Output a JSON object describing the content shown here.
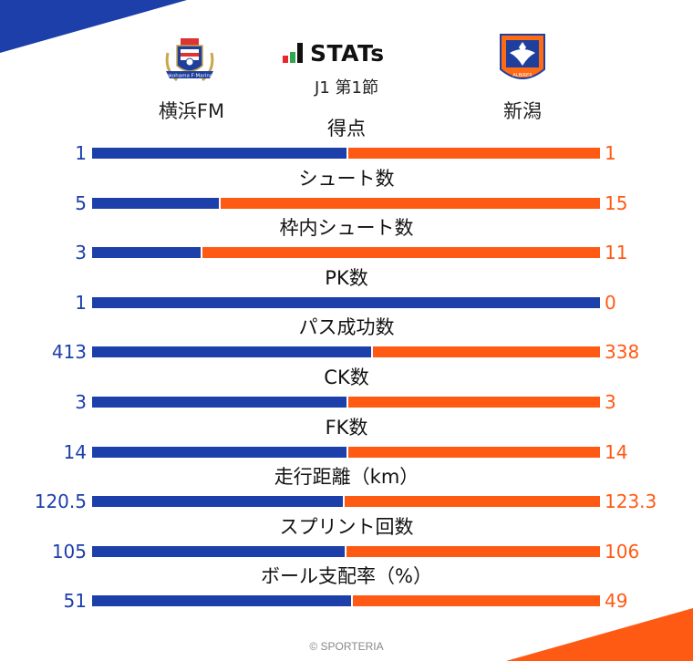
{
  "header": {
    "title": "STATs",
    "round": "J1 第1節",
    "home_team": "横浜FM",
    "away_team": "新潟",
    "home_crest_text": "Yokohama F·Marinos",
    "away_crest_text": "ALBIREX"
  },
  "colors": {
    "home": "#1c3faa",
    "away": "#ff5a14",
    "logo_bars": [
      "#e8262c",
      "#2fa84f",
      "#111111"
    ]
  },
  "stats": [
    {
      "label": "得点",
      "home": "1",
      "away": "1",
      "home_value": 1,
      "away_value": 1
    },
    {
      "label": "シュート数",
      "home": "5",
      "away": "15",
      "home_value": 5,
      "away_value": 15
    },
    {
      "label": "枠内シュート数",
      "home": "3",
      "away": "11",
      "home_value": 3,
      "away_value": 11
    },
    {
      "label": "PK数",
      "home": "1",
      "away": "0",
      "home_value": 1,
      "away_value": 0
    },
    {
      "label": "パス成功数",
      "home": "413",
      "away": "338",
      "home_value": 413,
      "away_value": 338
    },
    {
      "label": "CK数",
      "home": "3",
      "away": "3",
      "home_value": 3,
      "away_value": 3
    },
    {
      "label": "FK数",
      "home": "14",
      "away": "14",
      "home_value": 14,
      "away_value": 14
    },
    {
      "label": "走行距離（km）",
      "home": "120.5",
      "away": "123.3",
      "home_value": 120.5,
      "away_value": 123.3
    },
    {
      "label": "スプリント回数",
      "home": "105",
      "away": "106",
      "home_value": 105,
      "away_value": 106
    },
    {
      "label": "ボール支配率（%）",
      "home": "51",
      "away": "49",
      "home_value": 51,
      "away_value": 49
    }
  ],
  "footer": {
    "copyright": "© SPORTERIA"
  }
}
